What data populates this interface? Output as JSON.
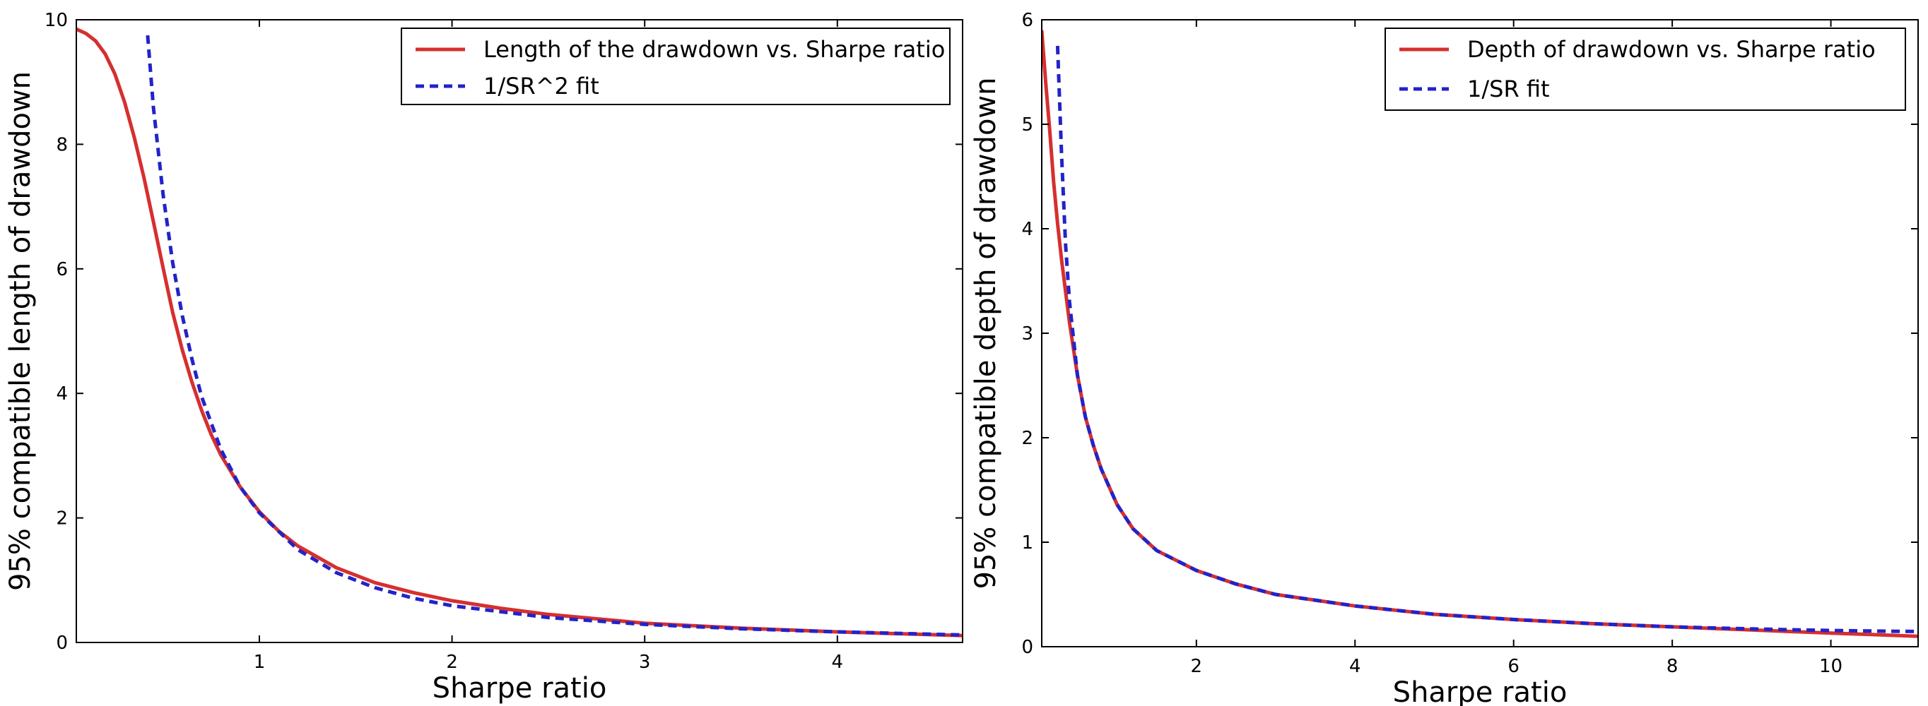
{
  "chart_data": [
    {
      "type": "line",
      "title": "",
      "xlabel": "Sharpe ratio",
      "ylabel": "95% compatible length of drawdown",
      "xlim": [
        0.05,
        4.65
      ],
      "ylim": [
        0,
        10
      ],
      "xticks": [
        1,
        2,
        3,
        4
      ],
      "yticks": [
        0,
        2,
        4,
        6,
        8,
        10
      ],
      "legend": "top-right",
      "grid": false,
      "series": [
        {
          "name": "Length of the drawdown vs. Sharpe ratio",
          "color": "#d62f2f",
          "style": "solid",
          "x": [
            0.05,
            0.1,
            0.15,
            0.2,
            0.25,
            0.3,
            0.35,
            0.4,
            0.45,
            0.5,
            0.55,
            0.6,
            0.65,
            0.7,
            0.75,
            0.8,
            0.9,
            1.0,
            1.1,
            1.2,
            1.4,
            1.6,
            1.8,
            2.0,
            2.25,
            2.5,
            3.0,
            3.5,
            4.0,
            4.65
          ],
          "y": [
            9.85,
            9.78,
            9.66,
            9.45,
            9.13,
            8.68,
            8.12,
            7.48,
            6.76,
            6.02,
            5.3,
            4.7,
            4.18,
            3.73,
            3.34,
            3.01,
            2.5,
            2.1,
            1.79,
            1.55,
            1.2,
            0.96,
            0.8,
            0.67,
            0.55,
            0.45,
            0.31,
            0.23,
            0.17,
            0.11
          ]
        },
        {
          "name": "1/SR^2 fit",
          "color": "#2323c8",
          "style": "dashed",
          "x": [
            0.42,
            0.45,
            0.5,
            0.55,
            0.6,
            0.65,
            0.7,
            0.8,
            0.9,
            1.0,
            1.2,
            1.4,
            1.6,
            1.8,
            2.0,
            2.5,
            3.0,
            3.5,
            4.0,
            4.65
          ],
          "y": [
            9.75,
            8.6,
            7.2,
            6.1,
            5.25,
            4.55,
            3.95,
            3.1,
            2.5,
            2.08,
            1.49,
            1.12,
            0.88,
            0.71,
            0.59,
            0.4,
            0.29,
            0.22,
            0.17,
            0.12
          ]
        }
      ]
    },
    {
      "type": "line",
      "title": "",
      "xlabel": "Sharpe ratio",
      "ylabel": "95% compatible depth of drawdown",
      "xlim": [
        0.05,
        11.1
      ],
      "ylim": [
        0,
        6
      ],
      "xticks": [
        2,
        4,
        6,
        8,
        10
      ],
      "yticks": [
        0,
        1,
        2,
        3,
        4,
        5,
        6
      ],
      "legend": "top-right",
      "grid": false,
      "series": [
        {
          "name": "Depth of drawdown vs. Sharpe ratio",
          "color": "#d62f2f",
          "style": "solid",
          "x": [
            0.05,
            0.1,
            0.15,
            0.2,
            0.25,
            0.3,
            0.35,
            0.4,
            0.5,
            0.6,
            0.7,
            0.8,
            1.0,
            1.2,
            1.5,
            2.0,
            2.5,
            3.0,
            4.0,
            5.0,
            6.0,
            7.0,
            8.0,
            9.0,
            10.0,
            11.1
          ],
          "y": [
            5.9,
            5.4,
            4.95,
            4.45,
            4.05,
            3.7,
            3.4,
            3.1,
            2.6,
            2.2,
            1.93,
            1.7,
            1.36,
            1.13,
            0.92,
            0.73,
            0.6,
            0.5,
            0.39,
            0.31,
            0.26,
            0.22,
            0.19,
            0.16,
            0.13,
            0.1
          ]
        },
        {
          "name": "1/SR fit",
          "color": "#2323c8",
          "style": "dashed",
          "x": [
            0.25,
            0.3,
            0.35,
            0.4,
            0.5,
            0.6,
            0.7,
            0.8,
            1.0,
            1.2,
            1.5,
            2.0,
            2.5,
            3.0,
            4.0,
            5.0,
            6.0,
            7.0,
            8.0,
            9.0,
            10.0,
            11.1
          ],
          "y": [
            5.75,
            4.7,
            3.85,
            3.3,
            2.6,
            2.2,
            1.93,
            1.7,
            1.36,
            1.13,
            0.92,
            0.73,
            0.6,
            0.5,
            0.39,
            0.31,
            0.26,
            0.22,
            0.19,
            0.17,
            0.155,
            0.145
          ]
        }
      ]
    }
  ]
}
